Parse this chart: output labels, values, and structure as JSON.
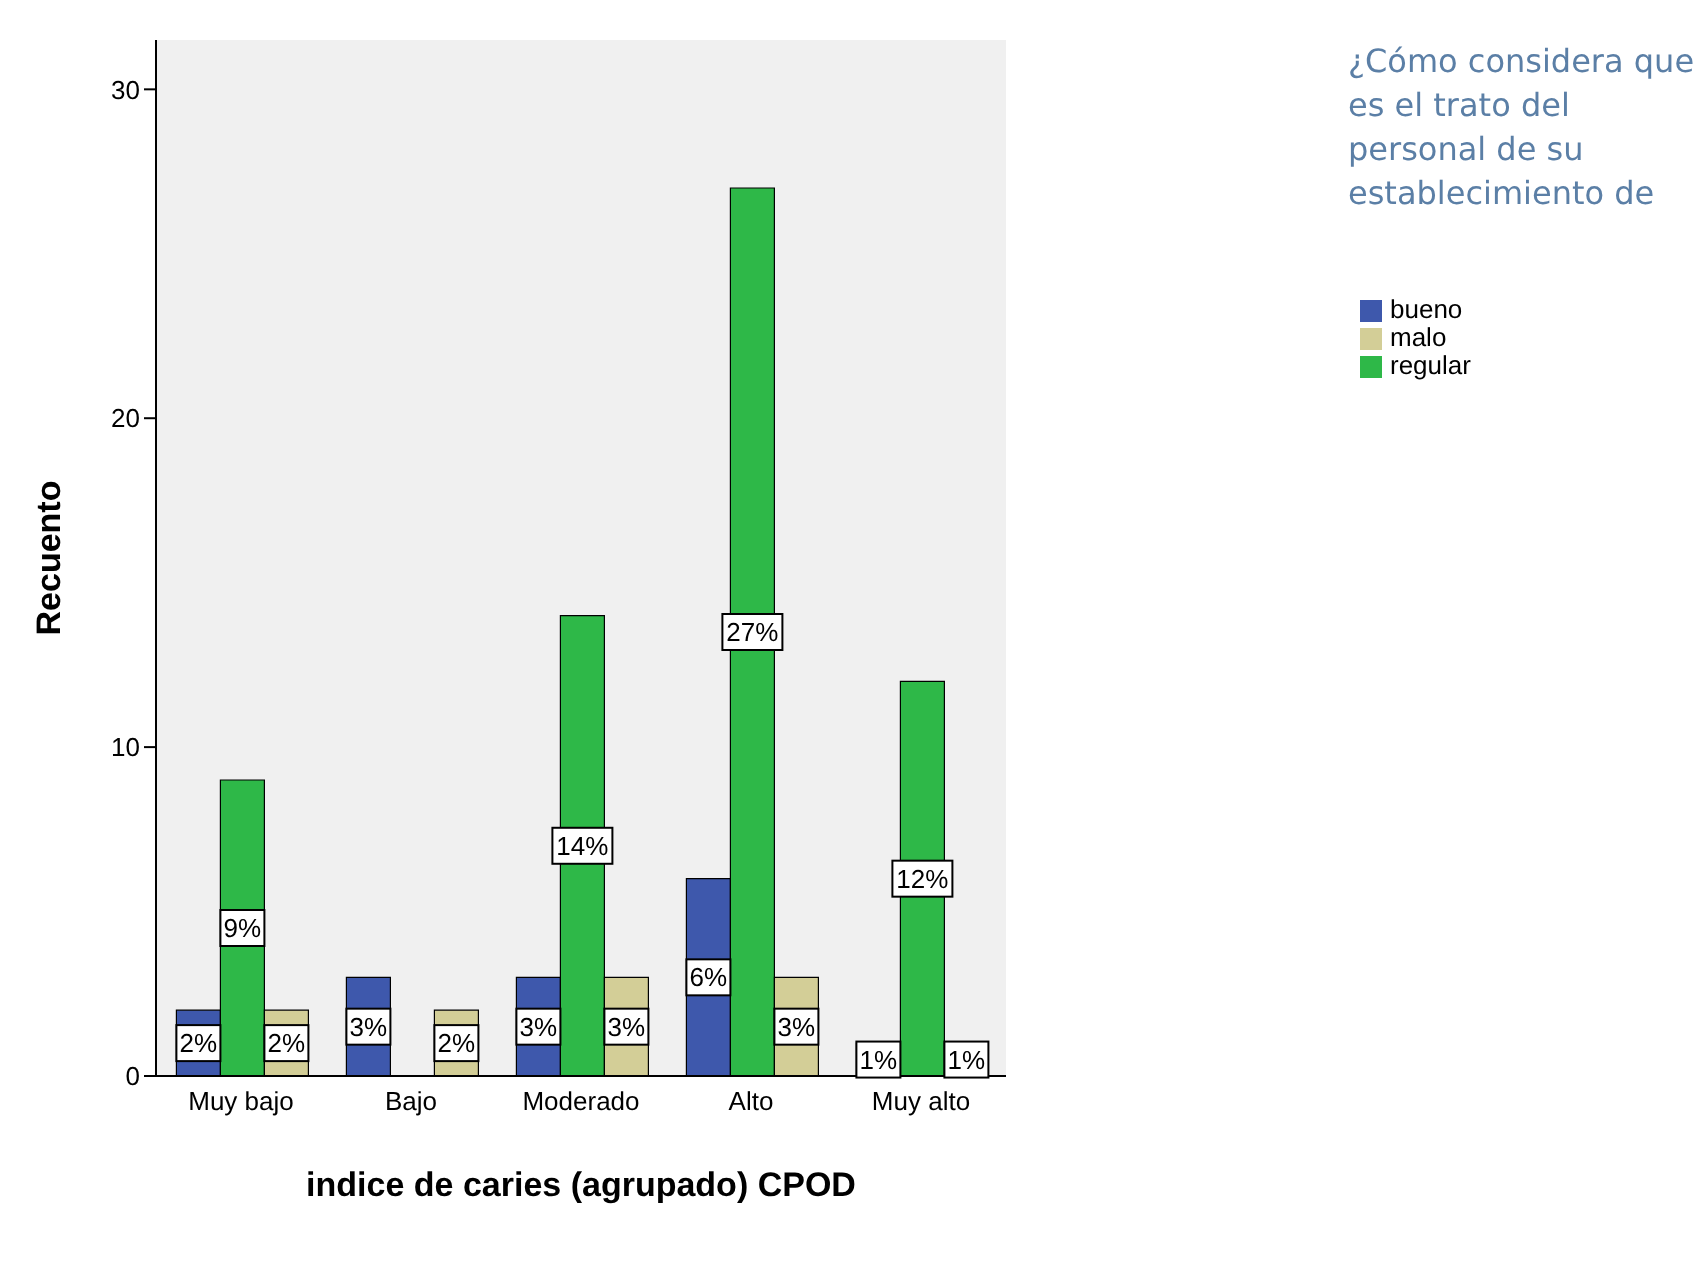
{
  "chart_data": {
    "type": "bar",
    "xlabel": "indice de caries (agrupado) CPOD",
    "ylabel": "Recuento",
    "legend_title": "¿Cómo considera que es el trato del personal de su establecimiento de",
    "categories": [
      "Muy bajo",
      "Bajo",
      "Moderado",
      "Alto",
      "Muy alto"
    ],
    "series": [
      {
        "name": "bueno",
        "color": "#3e58ac",
        "values": [
          2,
          3,
          3,
          6,
          1
        ],
        "value_labels": [
          "2%",
          "3%",
          "3%",
          "6%",
          "1%"
        ]
      },
      {
        "name": "regular",
        "color": "#2eb848",
        "values": [
          9,
          0,
          14,
          27,
          12
        ],
        "value_labels": [
          "9%",
          null,
          "14%",
          "27%",
          "12%"
        ]
      },
      {
        "name": "malo",
        "color": "#d3ce97",
        "values": [
          2,
          2,
          3,
          3,
          1
        ],
        "value_labels": [
          "2%",
          "2%",
          "3%",
          "3%",
          "1%"
        ]
      }
    ],
    "ylim": [
      0,
      31.5
    ],
    "yticks": [
      0,
      10,
      20,
      30
    ],
    "grid": false,
    "legend": "top right"
  }
}
